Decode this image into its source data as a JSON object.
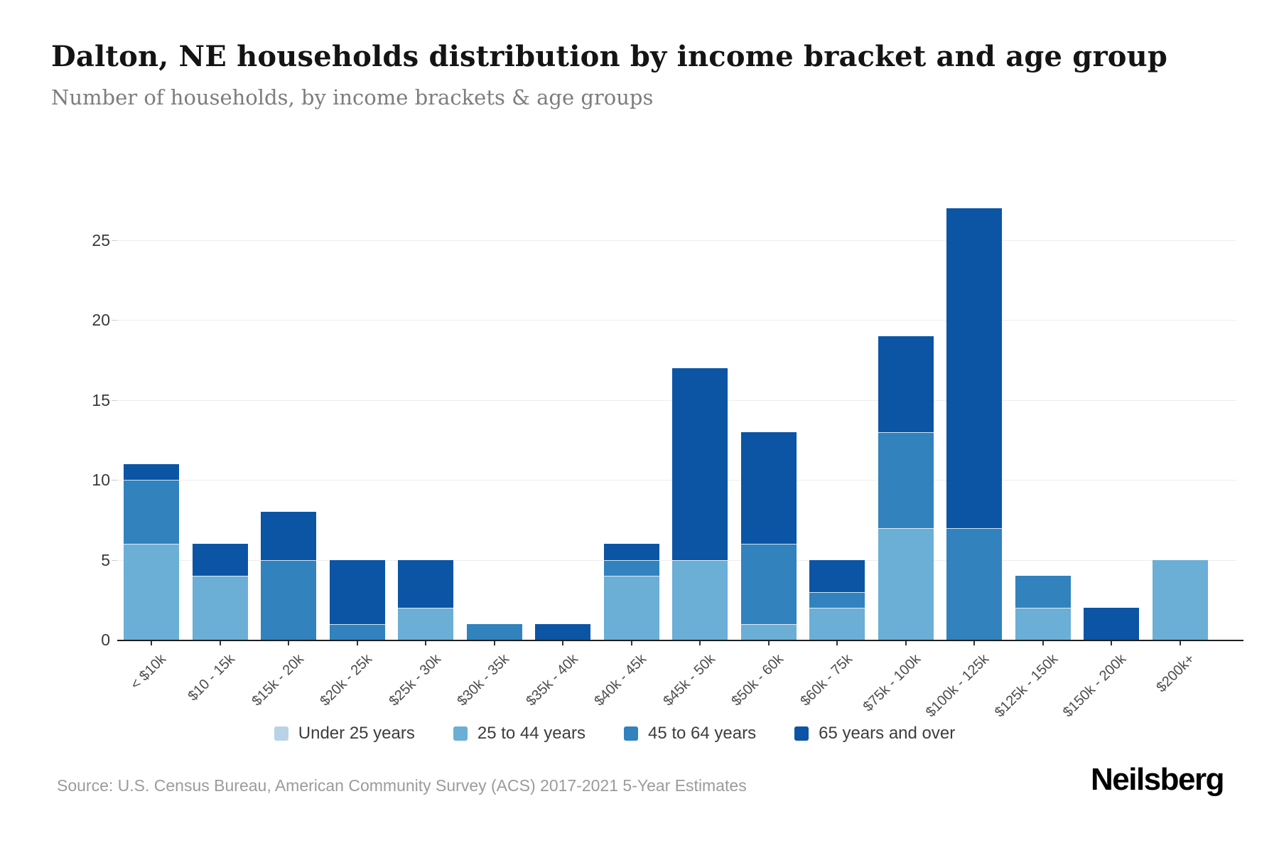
{
  "header": {
    "title": "Dalton, NE households distribution by income bracket and age group",
    "subtitle": "Number of households, by income brackets & age groups"
  },
  "chart_data": {
    "type": "bar",
    "stacked": true,
    "title": "Dalton, NE households distribution by income bracket and age group",
    "xlabel": "",
    "ylabel": "",
    "categories": [
      "< $10k",
      "$10 - 15k",
      "$15k - 20k",
      "$20k - 25k",
      "$25k - 30k",
      "$30k - 35k",
      "$35k - 40k",
      "$40k - 45k",
      "$45k - 50k",
      "$50k - 60k",
      "$60k - 75k",
      "$75k - 100k",
      "$100k - 125k",
      "$125k - 150k",
      "$150k - 200k",
      "$200k+"
    ],
    "series": [
      {
        "name": "Under 25 years",
        "color": "#b8d3e6",
        "values": [
          0,
          0,
          0,
          0,
          0,
          0,
          0,
          0,
          0,
          0,
          0,
          0,
          0,
          0,
          0,
          0
        ]
      },
      {
        "name": "25 to 44 years",
        "color": "#6baed6",
        "values": [
          6,
          4,
          0,
          0,
          2,
          0,
          0,
          4,
          5,
          1,
          2,
          7,
          0,
          2,
          0,
          5
        ]
      },
      {
        "name": "45 to 64 years",
        "color": "#3182bd",
        "values": [
          4,
          0,
          5,
          1,
          0,
          1,
          0,
          1,
          0,
          5,
          1,
          6,
          7,
          2,
          0,
          0
        ]
      },
      {
        "name": "65 years and over",
        "color": "#0b55a4",
        "values": [
          1,
          2,
          3,
          4,
          3,
          0,
          1,
          1,
          12,
          7,
          2,
          6,
          20,
          0,
          2,
          0
        ]
      }
    ],
    "totals": [
      11,
      6,
      8,
      5,
      5,
      1,
      1,
      6,
      17,
      13,
      5,
      19,
      27,
      4,
      2,
      5
    ],
    "yticks": [
      0,
      5,
      10,
      15,
      20,
      25
    ],
    "ylim": [
      0,
      29
    ],
    "grid": true,
    "legend_position": "bottom"
  },
  "footer": {
    "source": "Source: U.S. Census Bureau, American Community Survey (ACS) 2017-2021 5-Year Estimates",
    "brand": "Neilsberg"
  }
}
